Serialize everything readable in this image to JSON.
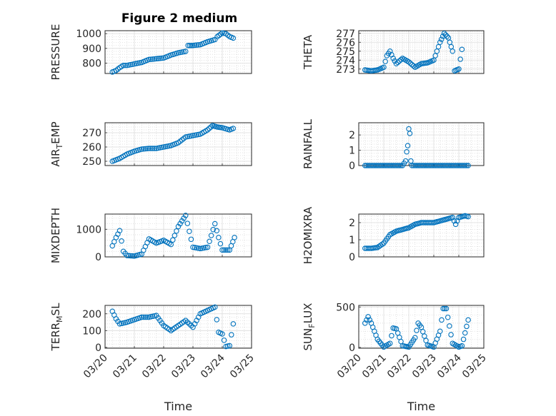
{
  "figure_title": "Figure 2 medium",
  "series_color": "#0072BD",
  "chart_data": [
    {
      "type": "scatter",
      "ylabel": "PRESSURE",
      "ylim": [
        730,
        1020
      ],
      "yticks": [
        800,
        900,
        1000
      ],
      "xlim": [
        "03/20",
        "03/25"
      ],
      "grid": "on (major + minor)",
      "points": [
        [
          "03/20 06:00",
          740
        ],
        [
          "03/20 09:00",
          750
        ],
        [
          "03/20 12:00",
          770
        ],
        [
          "03/20 15:00",
          785
        ],
        [
          "03/20 18:00",
          785
        ],
        [
          "03/21 00:00",
          795
        ],
        [
          "03/21 06:00",
          805
        ],
        [
          "03/21 12:00",
          825
        ],
        [
          "03/21 18:00",
          830
        ],
        [
          "03/22 00:00",
          835
        ],
        [
          "03/22 06:00",
          855
        ],
        [
          "03/22 12:00",
          870
        ],
        [
          "03/22 18:00",
          880
        ],
        [
          "03/22 20:00",
          920
        ],
        [
          "03/23 00:00",
          920
        ],
        [
          "03/23 06:00",
          925
        ],
        [
          "03/23 12:00",
          945
        ],
        [
          "03/23 18:00",
          960
        ],
        [
          "03/23 20:00",
          980
        ],
        [
          "03/24 00:00",
          1005
        ],
        [
          "03/24 03:00",
          1000
        ],
        [
          "03/24 06:00",
          980
        ],
        [
          "03/24 09:00",
          970
        ]
      ]
    },
    {
      "type": "scatter",
      "ylabel": "THETA",
      "ylim": [
        272.5,
        277.3
      ],
      "yticks": [
        273,
        274,
        275,
        276,
        277
      ],
      "xlim": [
        "03/20",
        "03/25"
      ],
      "grid": "on (major + minor)",
      "points": [
        [
          "03/20 06:00",
          272.9
        ],
        [
          "03/20 12:00",
          272.8
        ],
        [
          "03/20 18:00",
          272.9
        ],
        [
          "03/21 00:00",
          273.2
        ],
        [
          "03/21 03:00",
          274.5
        ],
        [
          "03/21 06:00",
          275
        ],
        [
          "03/21 09:00",
          274.2
        ],
        [
          "03/21 12:00",
          273.6
        ],
        [
          "03/21 18:00",
          274.2
        ],
        [
          "03/22 00:00",
          273.8
        ],
        [
          "03/22 06:00",
          273.2
        ],
        [
          "03/22 12:00",
          273.6
        ],
        [
          "03/22 18:00",
          273.7
        ],
        [
          "03/23 00:00",
          274
        ],
        [
          "03/23 06:00",
          276
        ],
        [
          "03/23 10:00",
          277
        ],
        [
          "03/23 14:00",
          276.5
        ],
        [
          "03/23 18:00",
          275
        ],
        [
          "03/23 20:00",
          272.8
        ],
        [
          "03/24 00:00",
          273
        ],
        [
          "03/24 03:00",
          275.2
        ]
      ]
    },
    {
      "type": "scatter",
      "ylabel": "AIR_TEMP",
      "ylim": [
        247,
        277
      ],
      "yticks": [
        250,
        260,
        270
      ],
      "xlim": [
        "03/20",
        "03/25"
      ],
      "grid": "on (major + minor)",
      "points": [
        [
          "03/20 06:00",
          250
        ],
        [
          "03/20 12:00",
          252
        ],
        [
          "03/20 18:00",
          255
        ],
        [
          "03/21 00:00",
          257
        ],
        [
          "03/21 06:00",
          258.5
        ],
        [
          "03/21 12:00",
          259
        ],
        [
          "03/21 18:00",
          259
        ],
        [
          "03/22 00:00",
          260
        ],
        [
          "03/22 06:00",
          261
        ],
        [
          "03/22 12:00",
          263
        ],
        [
          "03/22 18:00",
          267
        ],
        [
          "03/23 00:00",
          268
        ],
        [
          "03/23 06:00",
          269
        ],
        [
          "03/23 12:00",
          272
        ],
        [
          "03/23 16:00",
          275
        ],
        [
          "03/23 20:00",
          274
        ],
        [
          "03/24 00:00",
          273.5
        ],
        [
          "03/24 06:00",
          272
        ],
        [
          "03/24 09:00",
          273
        ]
      ]
    },
    {
      "type": "scatter",
      "ylabel": "RAINFALL",
      "ylim": [
        0,
        2.8
      ],
      "yticks": [
        0,
        1,
        2
      ],
      "xlim": [
        "03/20",
        "03/25"
      ],
      "grid": "on (major + minor)",
      "points": [
        [
          "03/20 06:00",
          0
        ],
        [
          "03/20 18:00",
          0
        ],
        [
          "03/21 06:00",
          0
        ],
        [
          "03/21 12:00",
          0
        ],
        [
          "03/21 18:00",
          0
        ],
        [
          "03/21 21:00",
          0.3
        ],
        [
          "03/21 22:00",
          0.9
        ],
        [
          "03/21 23:00",
          1.3
        ],
        [
          "03/22 00:00",
          2.4
        ],
        [
          "03/22 01:00",
          2.1
        ],
        [
          "03/22 02:00",
          0.3
        ],
        [
          "03/22 03:00",
          0
        ],
        [
          "03/22 12:00",
          0
        ],
        [
          "03/23 00:00",
          0
        ],
        [
          "03/23 12:00",
          0
        ],
        [
          "03/24 00:00",
          0
        ],
        [
          "03/24 09:00",
          0
        ]
      ]
    },
    {
      "type": "scatter",
      "ylabel": "MIXDEPTH",
      "ylim": [
        0,
        1550
      ],
      "yticks": [
        0,
        1000
      ],
      "xlim": [
        "03/20",
        "03/25"
      ],
      "grid": "on (major + minor)",
      "points": [
        [
          "03/20 06:00",
          400
        ],
        [
          "03/20 09:00",
          700
        ],
        [
          "03/20 12:00",
          950
        ],
        [
          "03/20 15:00",
          200
        ],
        [
          "03/20 18:00",
          50
        ],
        [
          "03/21 00:00",
          30
        ],
        [
          "03/21 06:00",
          100
        ],
        [
          "03/21 12:00",
          650
        ],
        [
          "03/21 18:00",
          500
        ],
        [
          "03/22 00:00",
          600
        ],
        [
          "03/22 06:00",
          450
        ],
        [
          "03/22 12:00",
          1100
        ],
        [
          "03/22 18:00",
          1500
        ],
        [
          "03/23 00:00",
          350
        ],
        [
          "03/23 06:00",
          300
        ],
        [
          "03/23 12:00",
          350
        ],
        [
          "03/23 18:00",
          1200
        ],
        [
          "03/23 21:00",
          700
        ],
        [
          "03/24 00:00",
          250
        ],
        [
          "03/24 06:00",
          250
        ],
        [
          "03/24 10:00",
          700
        ]
      ]
    },
    {
      "type": "scatter",
      "ylabel": "H2OMIXRA",
      "ylim": [
        0,
        2.5
      ],
      "yticks": [
        0,
        1,
        2
      ],
      "xlim": [
        "03/20",
        "03/25"
      ],
      "grid": "on (major + minor)",
      "points": [
        [
          "03/20 06:00",
          0.5
        ],
        [
          "03/20 12:00",
          0.5
        ],
        [
          "03/20 18:00",
          0.55
        ],
        [
          "03/21 00:00",
          0.8
        ],
        [
          "03/21 06:00",
          1.3
        ],
        [
          "03/21 12:00",
          1.5
        ],
        [
          "03/21 18:00",
          1.6
        ],
        [
          "03/22 00:00",
          1.7
        ],
        [
          "03/22 06:00",
          1.9
        ],
        [
          "03/22 12:00",
          2
        ],
        [
          "03/22 18:00",
          2
        ],
        [
          "03/23 00:00",
          2
        ],
        [
          "03/23 06:00",
          2.1
        ],
        [
          "03/23 12:00",
          2.2
        ],
        [
          "03/23 18:00",
          2.3
        ],
        [
          "03/23 21:00",
          1.9
        ],
        [
          "03/24 00:00",
          2.3
        ],
        [
          "03/24 06:00",
          2.4
        ],
        [
          "03/24 09:00",
          2.35
        ]
      ]
    },
    {
      "type": "scatter",
      "ylabel": "TERR_MSL",
      "ylim": [
        -5,
        250
      ],
      "yticks": [
        0,
        100,
        200
      ],
      "xlim": [
        "03/20",
        "03/25"
      ],
      "grid": "on (major + minor)",
      "points": [
        [
          "03/20 06:00",
          215
        ],
        [
          "03/20 09:00",
          170
        ],
        [
          "03/20 12:00",
          140
        ],
        [
          "03/20 18:00",
          150
        ],
        [
          "03/21 00:00",
          165
        ],
        [
          "03/21 06:00",
          180
        ],
        [
          "03/21 12:00",
          180
        ],
        [
          "03/21 18:00",
          190
        ],
        [
          "03/22 00:00",
          130
        ],
        [
          "03/22 06:00",
          100
        ],
        [
          "03/22 12:00",
          130
        ],
        [
          "03/22 18:00",
          160
        ],
        [
          "03/23 00:00",
          120
        ],
        [
          "03/23 06:00",
          200
        ],
        [
          "03/23 12:00",
          220
        ],
        [
          "03/23 18:00",
          240
        ],
        [
          "03/23 21:00",
          90
        ],
        [
          "03/24 00:00",
          80
        ],
        [
          "03/24 03:00",
          5
        ],
        [
          "03/24 06:00",
          10
        ],
        [
          "03/24 09:00",
          140
        ]
      ]
    },
    {
      "type": "scatter",
      "ylabel": "SUN_FLUX",
      "ylim": [
        -10,
        520
      ],
      "yticks": [
        0,
        500
      ],
      "xlim": [
        "03/20",
        "03/25"
      ],
      "grid": "on (major + minor)",
      "points": [
        [
          "03/20 06:00",
          300
        ],
        [
          "03/20 09:00",
          380
        ],
        [
          "03/20 12:00",
          300
        ],
        [
          "03/20 18:00",
          100
        ],
        [
          "03/21 00:00",
          5
        ],
        [
          "03/21 06:00",
          50
        ],
        [
          "03/21 09:00",
          240
        ],
        [
          "03/21 12:00",
          230
        ],
        [
          "03/21 18:00",
          20
        ],
        [
          "03/22 00:00",
          5
        ],
        [
          "03/22 06:00",
          120
        ],
        [
          "03/22 09:00",
          300
        ],
        [
          "03/22 12:00",
          250
        ],
        [
          "03/22 18:00",
          30
        ],
        [
          "03/23 00:00",
          5
        ],
        [
          "03/23 06:00",
          200
        ],
        [
          "03/23 09:00",
          480
        ],
        [
          "03/23 12:00",
          480
        ],
        [
          "03/23 18:00",
          50
        ],
        [
          "03/24 00:00",
          5
        ],
        [
          "03/24 03:00",
          20
        ],
        [
          "03/24 09:00",
          340
        ]
      ]
    }
  ],
  "xticklabels": [
    "03/20",
    "03/21",
    "03/22",
    "03/23",
    "03/24",
    "03/25"
  ],
  "xlabel": "Time"
}
